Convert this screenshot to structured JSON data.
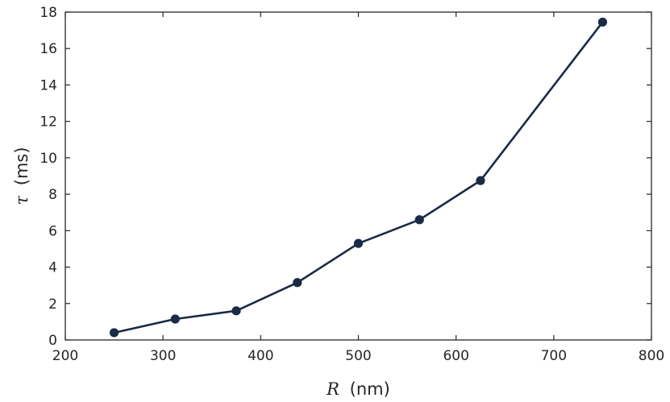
{
  "chart_data": {
    "type": "line",
    "x": [
      250,
      312.5,
      375,
      437.5,
      500,
      562.5,
      625,
      750
    ],
    "series": [
      {
        "values": [
          0.4,
          1.15,
          1.6,
          3.15,
          5.3,
          6.6,
          8.75,
          17.45
        ]
      }
    ],
    "xlabel": {
      "symbol": "R",
      "unit": "(nm)"
    },
    "ylabel": {
      "symbol": "τ",
      "unit": "(ms)"
    },
    "xlim": [
      200,
      800
    ],
    "ylim": [
      0,
      18
    ],
    "xticks": [
      200,
      300,
      400,
      500,
      600,
      700,
      800
    ],
    "yticks": [
      0,
      2,
      4,
      6,
      8,
      10,
      12,
      14,
      16,
      18
    ],
    "grid": false,
    "colors": {
      "line": "#1b2a45",
      "marker": "#1b2a45",
      "axes": "#262626"
    }
  }
}
